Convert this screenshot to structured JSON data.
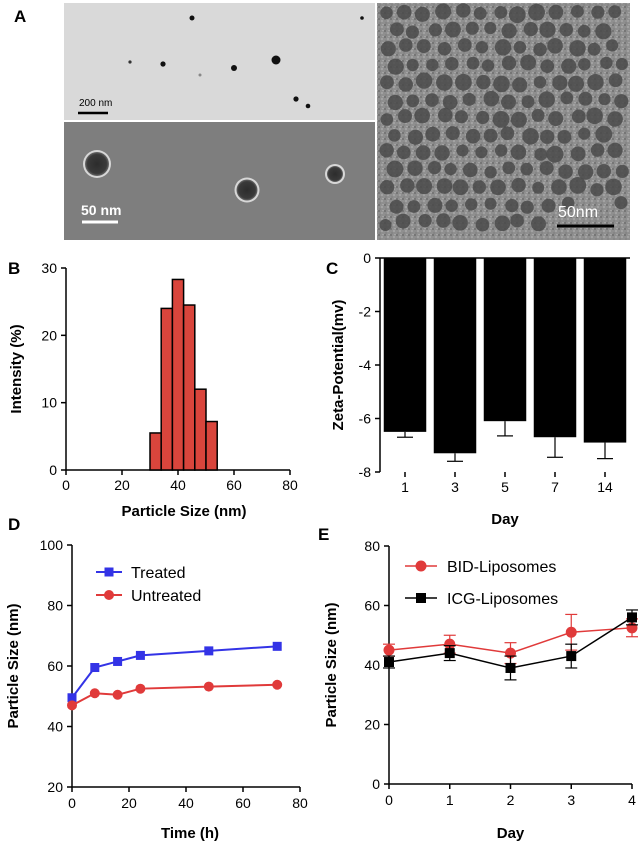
{
  "panels": {
    "A": "A",
    "B": "B",
    "C": "C",
    "D": "D",
    "E": "E"
  },
  "tem": {
    "scale_top": "200 nm",
    "scale_bottom": "50 nm",
    "scale_right": "50nm"
  },
  "chart_data": [
    {
      "id": "B",
      "type": "bar",
      "xlabel": "Particle Size (nm)",
      "ylabel": "Intensity (%)",
      "xlim": [
        0,
        80
      ],
      "ylim": [
        0,
        30
      ],
      "xticks": [
        0,
        20,
        40,
        60,
        80
      ],
      "yticks": [
        0,
        10,
        20,
        30
      ],
      "bar_width": 4,
      "colors": {
        "bar": "#d9453c",
        "edge": "#000000"
      },
      "x": [
        32,
        36,
        40,
        44,
        48,
        52
      ],
      "values": [
        5.5,
        24,
        28.3,
        24.5,
        12,
        7.2
      ]
    },
    {
      "id": "C",
      "type": "bar",
      "xlabel": "Day",
      "ylabel": "Zeta-Potential(mv)",
      "ylim": [
        -8,
        0
      ],
      "yticks": [
        0,
        -2,
        -4,
        -6,
        -8
      ],
      "categories": [
        "1",
        "3",
        "5",
        "7",
        "14"
      ],
      "values": [
        -6.5,
        -7.3,
        -6.1,
        -6.7,
        -6.9
      ],
      "errors": [
        0.2,
        0.3,
        0.55,
        0.75,
        0.6
      ],
      "colors": {
        "bar": "#000000"
      }
    },
    {
      "id": "D",
      "type": "line",
      "xlabel": "Time (h)",
      "ylabel": "Particle Size (nm)",
      "xlim": [
        0,
        80
      ],
      "ylim": [
        20,
        100
      ],
      "xticks": [
        0,
        20,
        40,
        60,
        80
      ],
      "yticks": [
        20,
        40,
        60,
        80,
        100
      ],
      "legend": "top-left",
      "series": [
        {
          "name": "Treated",
          "color": "#3333e6",
          "marker": "square",
          "x": [
            0,
            8,
            16,
            24,
            48,
            72
          ],
          "y": [
            49.5,
            59.5,
            61.5,
            63.5,
            65,
            66.5
          ]
        },
        {
          "name": "Untreated",
          "color": "#e03a3a",
          "marker": "circle",
          "x": [
            0,
            8,
            16,
            24,
            48,
            72
          ],
          "y": [
            47,
            51,
            50.5,
            52.5,
            53.2,
            53.8
          ]
        }
      ]
    },
    {
      "id": "E",
      "type": "line",
      "xlabel": "Day",
      "ylabel": "Particle Size (nm)",
      "xlim": [
        0,
        4
      ],
      "ylim": [
        0,
        80
      ],
      "xticks": [
        0,
        1,
        2,
        3,
        4
      ],
      "yticks": [
        0,
        20,
        40,
        60,
        80
      ],
      "legend": "top-left",
      "series": [
        {
          "name": "BID-Liposomes",
          "color": "#e03a3a",
          "marker": "circle",
          "x": [
            0,
            1,
            2,
            3,
            4
          ],
          "y": [
            45,
            47,
            44,
            51,
            52.5
          ],
          "err": [
            2,
            3,
            3.5,
            6,
            3
          ]
        },
        {
          "name": "ICG-Liposomes",
          "color": "#000000",
          "marker": "square",
          "x": [
            0,
            1,
            2,
            3,
            4
          ],
          "y": [
            41,
            44,
            39,
            43,
            56
          ],
          "err": [
            2,
            2.5,
            4,
            4,
            2.5
          ]
        }
      ]
    }
  ]
}
